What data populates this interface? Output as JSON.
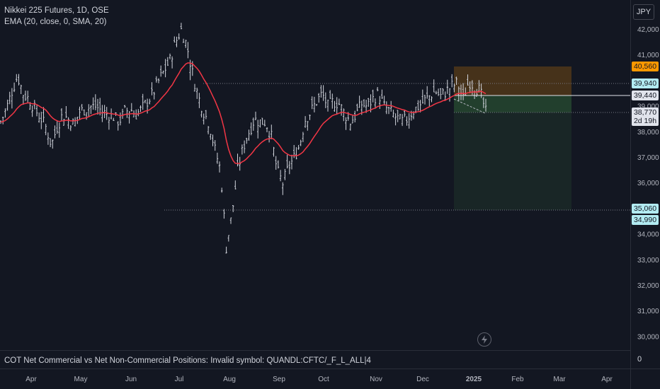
{
  "legend": {
    "symbol": "Nikkei 225 Futures, 1D, OSE",
    "indicator": "EMA (20, close, 0, SMA, 20)"
  },
  "currency_button": "JPY",
  "bottom_pane": {
    "title": "COT Net Commercial vs Net Non-Commercial Positions: Invalid symbol: QUANDL:CFTC/_F_L_ALL|4",
    "scale_label": "0"
  },
  "price_axis": {
    "ticks": [
      "42,000",
      "41,000",
      "39,000",
      "38,000",
      "37,000",
      "36,000",
      "34,000",
      "33,000",
      "32,000",
      "31,000",
      "30,000"
    ]
  },
  "price_tags": {
    "target": "40,560",
    "level_high": "39,940",
    "entry": "39,440",
    "last_price": "38,770",
    "countdown": "2d 19h",
    "level_low": "35,060",
    "stop": "34,990"
  },
  "time_axis": {
    "labels": [
      "Apr",
      "May",
      "Jun",
      "Jul",
      "Aug",
      "Sep",
      "Oct",
      "Nov",
      "Dec",
      "2025",
      "Feb",
      "Mar",
      "Apr"
    ]
  },
  "colors": {
    "background": "#131722",
    "bars": "#d1d4dc",
    "ema": "#f23645",
    "profit_zone": "#ff9800",
    "loss_zone": "#4caf50",
    "level_tag": "#b2ebf2",
    "axis_border": "#2a2e39"
  },
  "chart_data": {
    "type": "ohlc",
    "x": [
      "Apr",
      "May",
      "Jun",
      "Jul",
      "Aug",
      "Sep",
      "Oct",
      "Nov",
      "Dec",
      "Jan",
      "Feb",
      "Mar",
      "Apr"
    ],
    "series_close": [
      [
        0,
        38400
      ],
      [
        5,
        38900
      ],
      [
        10,
        39600
      ],
      [
        15,
        40200
      ],
      [
        20,
        39500
      ],
      [
        25,
        39300
      ],
      [
        30,
        38900
      ],
      [
        35,
        38600
      ],
      [
        40,
        38200
      ],
      [
        45,
        37500
      ],
      [
        50,
        38200
      ],
      [
        55,
        38700
      ],
      [
        60,
        38500
      ],
      [
        65,
        38300
      ],
      [
        70,
        38800
      ],
      [
        75,
        38900
      ],
      [
        80,
        39000
      ],
      [
        85,
        39000
      ],
      [
        90,
        38800
      ],
      [
        95,
        38700
      ],
      [
        100,
        38600
      ],
      [
        105,
        38400
      ],
      [
        110,
        38800
      ],
      [
        115,
        38900
      ],
      [
        120,
        38700
      ],
      [
        125,
        38900
      ],
      [
        130,
        39200
      ],
      [
        135,
        39500
      ],
      [
        140,
        40000
      ],
      [
        145,
        40400
      ],
      [
        150,
        40800
      ],
      [
        155,
        41500
      ],
      [
        160,
        42000
      ],
      [
        165,
        41400
      ],
      [
        170,
        40300
      ],
      [
        175,
        39400
      ],
      [
        180,
        38800
      ],
      [
        185,
        38300
      ],
      [
        190,
        37300
      ],
      [
        195,
        36500
      ],
      [
        200,
        33500
      ],
      [
        205,
        34800
      ],
      [
        210,
        36500
      ],
      [
        215,
        37400
      ],
      [
        220,
        38000
      ],
      [
        225,
        38500
      ],
      [
        230,
        38400
      ],
      [
        235,
        38400
      ],
      [
        240,
        37800
      ],
      [
        245,
        36500
      ],
      [
        250,
        36000
      ],
      [
        255,
        36600
      ],
      [
        260,
        37000
      ],
      [
        265,
        37500
      ],
      [
        270,
        38500
      ],
      [
        275,
        38800
      ],
      [
        280,
        39200
      ],
      [
        285,
        39500
      ],
      [
        290,
        39000
      ],
      [
        295,
        39200
      ],
      [
        300,
        39100
      ],
      [
        305,
        38700
      ],
      [
        310,
        38400
      ],
      [
        315,
        38700
      ],
      [
        320,
        39100
      ],
      [
        325,
        39000
      ],
      [
        330,
        39300
      ],
      [
        335,
        39500
      ],
      [
        340,
        39000
      ],
      [
        345,
        38800
      ],
      [
        350,
        38600
      ],
      [
        355,
        38400
      ],
      [
        360,
        38500
      ],
      [
        365,
        38800
      ],
      [
        370,
        39000
      ],
      [
        375,
        39200
      ],
      [
        380,
        39400
      ],
      [
        385,
        39600
      ],
      [
        390,
        39400
      ],
      [
        395,
        39600
      ],
      [
        400,
        39800
      ],
      [
        405,
        39900
      ],
      [
        410,
        39300
      ],
      [
        415,
        40000
      ],
      [
        420,
        39800
      ],
      [
        425,
        39600
      ],
      [
        430,
        38770
      ]
    ],
    "ema": {
      "name": "EMA (20, close, 0, SMA, 20)"
    },
    "ylim": [
      29700,
      42900
    ]
  }
}
